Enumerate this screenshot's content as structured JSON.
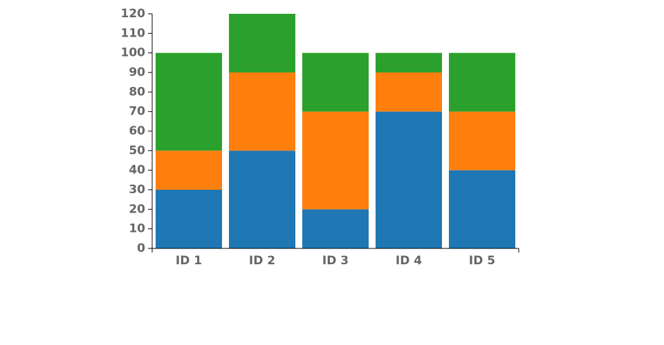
{
  "chart_data": {
    "type": "bar",
    "stacked": true,
    "title": "",
    "xlabel": "",
    "ylabel": "",
    "categories": [
      "ID 1",
      "ID 2",
      "ID 3",
      "ID 4",
      "ID 5"
    ],
    "ylim": [
      0,
      120
    ],
    "yticks": [
      0,
      10,
      20,
      30,
      40,
      50,
      60,
      70,
      80,
      90,
      100,
      110,
      120
    ],
    "grid": false,
    "legend": "none",
    "series": [
      {
        "values": [
          30,
          50,
          20,
          70,
          40
        ],
        "color": "#1f77b4"
      },
      {
        "values": [
          20,
          40,
          50,
          20,
          30
        ],
        "color": "#ff7f0e"
      },
      {
        "values": [
          50,
          30,
          30,
          10,
          30
        ],
        "color": "#2ca02c"
      }
    ]
  }
}
